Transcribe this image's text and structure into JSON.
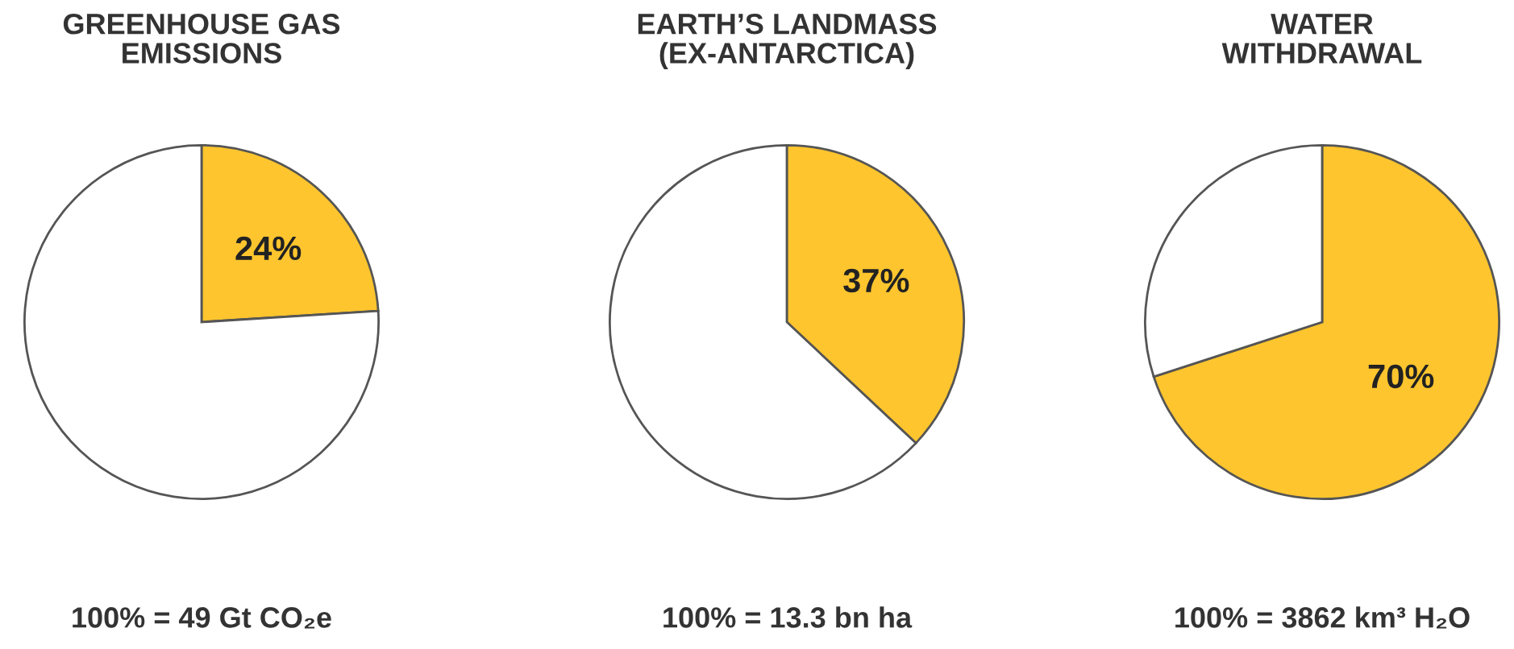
{
  "chart_data": [
    {
      "type": "pie",
      "title": "GREENHOUSE GAS\nEMISSIONS",
      "categories": [
        null,
        null
      ],
      "values": [
        24,
        76
      ],
      "colors": [
        "#fec52e",
        "#ffffff"
      ],
      "value_labels": [
        "24%",
        null
      ],
      "annotations": [
        "100% = 49 Gt CO₂e"
      ]
    },
    {
      "type": "pie",
      "title": "EARTH’S LANDMASS\n(EX-ANTARCTICA)",
      "categories": [
        null,
        null
      ],
      "values": [
        37,
        63
      ],
      "colors": [
        "#fec52e",
        "#ffffff"
      ],
      "value_labels": [
        "37%",
        null
      ],
      "annotations": [
        "100% = 13.3 bn ha"
      ]
    },
    {
      "type": "pie",
      "title": "WATER\nWITHDRAWAL",
      "categories": [
        null,
        null
      ],
      "values": [
        70,
        30
      ],
      "colors": [
        "#fec52e",
        "#ffffff"
      ],
      "value_labels": [
        "70%",
        null
      ],
      "annotations": [
        "100% = 3862 km³ H₂O"
      ]
    }
  ]
}
